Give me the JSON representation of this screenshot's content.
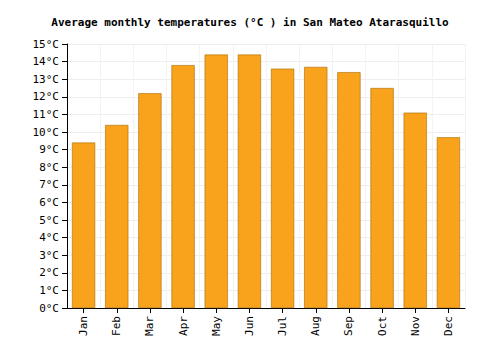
{
  "chart_data": {
    "type": "bar",
    "title": "Average monthly temperatures (°C ) in San Mateo Atarasquillo",
    "categories": [
      "Jan",
      "Feb",
      "Mar",
      "Apr",
      "May",
      "Jun",
      "Jul",
      "Aug",
      "Sep",
      "Oct",
      "Nov",
      "Dec"
    ],
    "values": [
      9.4,
      10.4,
      12.2,
      13.8,
      14.4,
      14.4,
      13.6,
      13.7,
      13.4,
      12.5,
      11.1,
      9.7
    ],
    "color": "#f9a21c",
    "ylim": [
      0,
      15
    ],
    "yticks": [
      {
        "value": 0,
        "label": "0°C"
      },
      {
        "value": 1,
        "label": "1°C"
      },
      {
        "value": 2,
        "label": "2°C"
      },
      {
        "value": 3,
        "label": "3°C"
      },
      {
        "value": 4,
        "label": "4°C"
      },
      {
        "value": 5,
        "label": "5°C"
      },
      {
        "value": 6,
        "label": "6°C"
      },
      {
        "value": 7,
        "label": "7°C"
      },
      {
        "value": 8,
        "label": "8°C"
      },
      {
        "value": 9,
        "label": "9°C"
      },
      {
        "value": 10,
        "label": "10°C"
      },
      {
        "value": 11,
        "label": "11°C"
      },
      {
        "value": 12,
        "label": "12°C"
      },
      {
        "value": 13,
        "label": "13°C"
      },
      {
        "value": 14,
        "label": "14°C"
      },
      {
        "value": 15,
        "label": "15°C"
      }
    ],
    "grid": true
  }
}
